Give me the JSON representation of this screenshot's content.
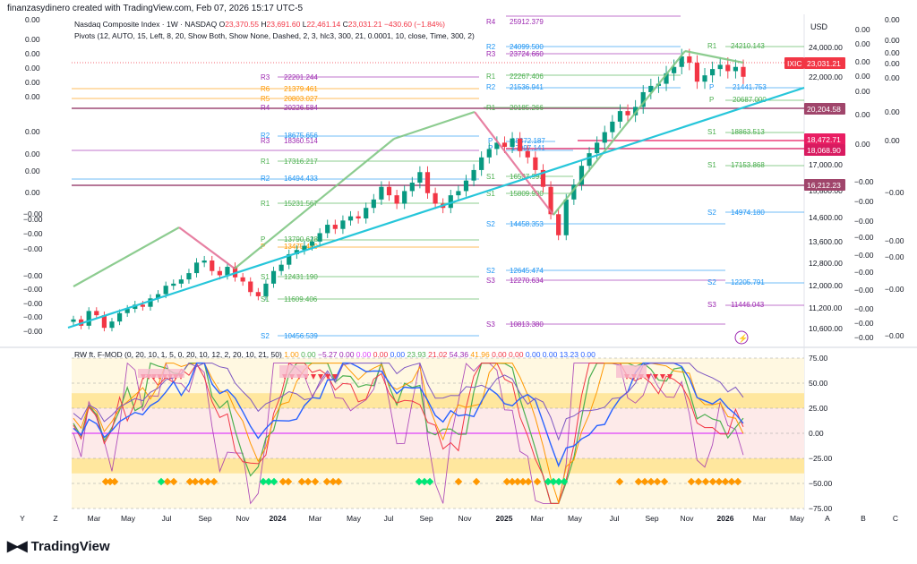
{
  "header": {
    "attribution": "finanzasydinero created with TradingView.com, Feb 07, 2026 15:17 UTC-5"
  },
  "symbol": {
    "name": "Nasdaq Composite Index · 1W · NASDAQ",
    "open_label": "O",
    "open": "23,370.55",
    "high_label": "H",
    "high": "23,691.60",
    "low_label": "L",
    "low": "22,461.14",
    "close_label": "C",
    "close": "23,031.21",
    "change": "−430.60 (−1.84%)"
  },
  "pivots_indicator": "Pivots (12, AUTO, 15, Left, 8, 20, Show Both, Show None, Dashed, 2, 3, hlc3, 300, 21, 0.0001, 10, close, Time, 300, 2)",
  "oscillator": {
    "name": "RW ft. F-MOD (0, 20, 10, 1, 5, 0, 20, 10, 12, 2, 20, 10, 21, 50)",
    "values": [
      {
        "v": "1.00",
        "c": "#ff9800"
      },
      {
        "v": "0.00",
        "c": "#4caf50"
      },
      {
        "v": "−5.27",
        "c": "#9c27b0"
      },
      {
        "v": "0.00",
        "c": "#9c27b0"
      },
      {
        "v": "0.00",
        "c": "#e040fb"
      },
      {
        "v": "0.00",
        "c": "#f23645"
      },
      {
        "v": "0.00",
        "c": "#2962ff"
      },
      {
        "v": "23.93",
        "c": "#4caf50"
      },
      {
        "v": "21.02",
        "c": "#f23645"
      },
      {
        "v": "54.36",
        "c": "#9c27b0"
      },
      {
        "v": "41.96",
        "c": "#ff9800"
      },
      {
        "v": "0.00",
        "c": "#f23645"
      },
      {
        "v": "0.00",
        "c": "#f23645"
      },
      {
        "v": "0.00",
        "c": "#2962ff"
      },
      {
        "v": "0.00",
        "c": "#2962ff"
      },
      {
        "v": "13.23",
        "c": "#2962ff"
      },
      {
        "v": "0.00",
        "c": "#2962ff"
      }
    ]
  },
  "currency": "USD",
  "price_axis_labels": [
    "24,000.00",
    "22,000.00",
    "17,000.00",
    "15,800.00",
    "14,600.00",
    "13,600.00",
    "12,800.00",
    "12,000.00",
    "11,200.00",
    "10,600.00"
  ],
  "price_tags": [
    {
      "text": "IXIC",
      "color": "#f23645"
    },
    {
      "text": "23,031.21",
      "color": "#f23645"
    },
    {
      "text": "20,204.58",
      "color": "#a0456b"
    },
    {
      "text": "18,472.71",
      "color": "#e91e63"
    },
    {
      "text": "18,068.90",
      "color": "#d81b60"
    },
    {
      "text": "16,212.23",
      "color": "#a0456b"
    }
  ],
  "osc_axis_labels": [
    "75.00",
    "50.00",
    "25.00",
    "0.00",
    "−25.00",
    "−50.00",
    "−75.00"
  ],
  "left_axis_labels": [
    "0.00",
    "0.00",
    "0.00",
    "0.00",
    "0.00",
    "0.00",
    "0.00",
    "0.00",
    "0.00",
    "0.00",
    "−0.00",
    "−0.00",
    "−0.00",
    "−0.00",
    "−0.00",
    "−0.00",
    "−0.00",
    "−0.00",
    "−0.00"
  ],
  "right_axis_labels": [
    "0.00",
    "0.00",
    "0.00",
    "0.00",
    "0.00",
    "0.00",
    "0.00",
    "−0.00",
    "−0.00",
    "−0.00",
    "−0.00",
    "−0.00",
    "−0.00",
    "−0.00",
    "−0.00",
    "−0.00",
    "−0.00"
  ],
  "pivot_labels": [
    {
      "t": "R4",
      "v": "25912.379",
      "c": "#9c27b0"
    },
    {
      "t": "R2",
      "v": "24099.500",
      "c": "#2196f3"
    },
    {
      "t": "R3",
      "v": "23724.660",
      "c": "#9c27b0"
    },
    {
      "t": "R1",
      "v": "22267.406",
      "c": "#4caf50"
    },
    {
      "t": "R2",
      "v": "21536.941",
      "c": "#2196f3"
    },
    {
      "t": "R3",
      "v": "22201.244",
      "c": "#9c27b0"
    },
    {
      "t": "R6",
      "v": "21379.461",
      "c": "#ff9800"
    },
    {
      "t": "R5",
      "v": "20803.027",
      "c": "#ff9800"
    },
    {
      "t": "R4",
      "v": "20226.584",
      "c": "#9c27b0"
    },
    {
      "t": "R1",
      "v": "20185.266",
      "c": "#4caf50"
    },
    {
      "t": "R2",
      "v": "18675.656",
      "c": "#2196f3"
    },
    {
      "t": "R3",
      "v": "18360.514",
      "c": "#9c27b0"
    },
    {
      "t": "P",
      "v": "18372.187",
      "c": "#2196f3"
    },
    {
      "t": "P",
      "v": "17997.141",
      "c": "#2196f3"
    },
    {
      "t": "R1",
      "v": "17316.217",
      "c": "#4caf50"
    },
    {
      "t": "R2",
      "v": "16494.433",
      "c": "#2196f3"
    },
    {
      "t": "S1",
      "v": "16537.993",
      "c": "#4caf50"
    },
    {
      "t": "S1",
      "v": "15809.930",
      "c": "#4caf50"
    },
    {
      "t": "R1",
      "v": "15231.567",
      "c": "#4caf50"
    },
    {
      "t": "S2",
      "v": "14458.353",
      "c": "#2196f3"
    },
    {
      "t": "P",
      "v": "13790.628",
      "c": "#4caf50"
    },
    {
      "t": "P",
      "v": "13475.480",
      "c": "#ff9800"
    },
    {
      "t": "S1",
      "v": "12431.190",
      "c": "#4caf50"
    },
    {
      "t": "S2",
      "v": "12645.474",
      "c": "#2196f3"
    },
    {
      "t": "S3",
      "v": "12270.634",
      "c": "#9c27b0"
    },
    {
      "t": "S1",
      "v": "11609.406",
      "c": "#4caf50"
    },
    {
      "t": "S3",
      "v": "10813.380",
      "c": "#9c27b0"
    },
    {
      "t": "S2",
      "v": "10456.539",
      "c": "#2196f3"
    },
    {
      "t": "R1",
      "v": "24210.143",
      "c": "#4caf50"
    },
    {
      "t": "P",
      "v": "21441.753",
      "c": "#2196f3"
    },
    {
      "t": "P",
      "v": "20687.000",
      "c": "#4caf50"
    },
    {
      "t": "S1",
      "v": "18863.513",
      "c": "#4caf50"
    },
    {
      "t": "S1",
      "v": "17153.868",
      "c": "#4caf50"
    },
    {
      "t": "S2",
      "v": "14974.180",
      "c": "#2196f3"
    },
    {
      "t": "S2",
      "v": "12205.791",
      "c": "#2196f3"
    },
    {
      "t": "S3",
      "v": "11446.043",
      "c": "#9c27b0"
    }
  ],
  "time_axis_labels": [
    "Y",
    "Z",
    "Mar",
    "May",
    "Jul",
    "Sep",
    "Nov",
    "2024",
    "Mar",
    "May",
    "Jul",
    "Sep",
    "Nov",
    "2025",
    "Mar",
    "May",
    "Jul",
    "Sep",
    "Nov",
    "2026",
    "Mar",
    "May",
    "A",
    "B",
    "C"
  ],
  "logo": "TradingView",
  "chart_data": {
    "type": "candlestick",
    "title": "Nasdaq Composite Index · 1W · NASDAQ",
    "series": [
      {
        "name": "IXIC",
        "values": [
          11500,
          11200,
          11900,
          11700,
          11100,
          11400,
          11800,
          12000,
          12200,
          12100,
          12500,
          12700,
          13100,
          13200,
          13400,
          13700,
          14200,
          14300,
          13800,
          13600,
          14000,
          13500,
          13300,
          12800,
          12600,
          13200,
          13800,
          14100,
          14600,
          14800,
          15000,
          15200,
          15600,
          16000,
          15800,
          16200,
          16400,
          16300,
          16800,
          17200,
          17800,
          17400,
          17000,
          17600,
          18000,
          18500,
          17500,
          17000,
          16800,
          17400,
          17600,
          18100,
          18600,
          19200,
          19600,
          19900,
          19700,
          20100,
          19500,
          19200,
          18600,
          17800,
          16500,
          15500,
          17200,
          17900,
          18800,
          19400,
          19900,
          20400,
          20900,
          21400,
          21200,
          21600,
          22300,
          22600,
          22700,
          23200,
          23500,
          24000,
          23700,
          22800,
          23100,
          23400,
          23600,
          23300,
          23500,
          23031
        ]
      }
    ],
    "oscillator": {
      "name": "RW ft. F-MOD",
      "ylim": [
        -75,
        75
      ],
      "levels": [
        75,
        50,
        25,
        0,
        -25,
        -50,
        -75
      ]
    }
  }
}
